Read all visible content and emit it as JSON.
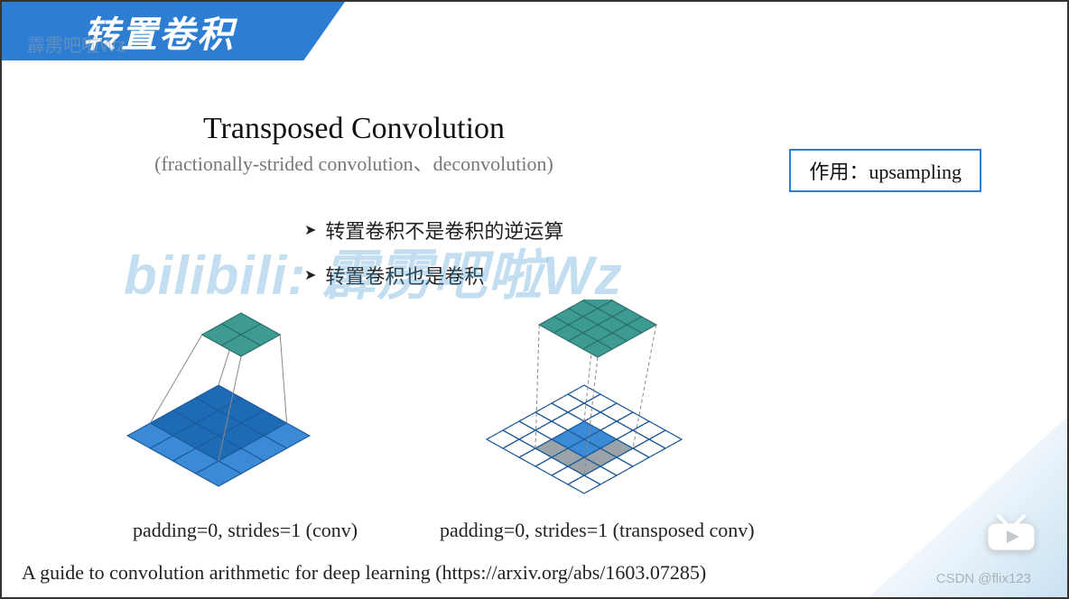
{
  "banner": {
    "title": "转置卷积",
    "bg": "#2d7dd2",
    "fg": "#ffffff"
  },
  "watermark_top": "霹雳吧啦Wz",
  "watermark_center": "bilibili: 霹雳吧啦Wz",
  "main_title": "Transposed Convolution",
  "sub_title": "(fractionally-strided convolution、deconvolution)",
  "role_box": "作用：upsampling",
  "bullets": [
    "转置卷积不是卷积的逆运算",
    "转置卷积也是卷积"
  ],
  "diagrams": {
    "left": {
      "caption": "padding=0, strides=1 (conv)",
      "top_grid": {
        "rows": 2,
        "cols": 2,
        "fill": "#3e9b93",
        "stroke": "#2a6f69"
      },
      "bottom_grid": {
        "rows": 4,
        "cols": 4,
        "fill": "#3a8ad6",
        "stroke": "#1d5a99"
      },
      "bottom_highlight": {
        "fill": "#1d6ab5",
        "cells": [
          [
            0,
            0
          ],
          [
            0,
            1
          ],
          [
            0,
            2
          ],
          [
            1,
            0
          ],
          [
            1,
            1
          ],
          [
            1,
            2
          ],
          [
            2,
            0
          ],
          [
            2,
            1
          ],
          [
            2,
            2
          ]
        ]
      }
    },
    "right": {
      "caption": "padding=0, strides=1 (transposed conv)",
      "top_grid": {
        "rows": 4,
        "cols": 4,
        "fill": "#3e9b93",
        "stroke": "#2a6f69"
      },
      "bottom_grid": {
        "rows": 6,
        "cols": 6,
        "fill": "#ffffff",
        "stroke": "#888888",
        "dashed": true
      },
      "bottom_inner": {
        "row0": 2,
        "col0": 2,
        "rows": 2,
        "cols": 2,
        "fill": "#3a8ad6",
        "stroke": "#1d5a99"
      },
      "bottom_shadow": {
        "row0": 2,
        "col0": 2,
        "rows": 3,
        "cols": 3,
        "fill": "#9aa3a8"
      }
    }
  },
  "footer": "A guide to convolution arithmetic for deep learning (https://arxiv.org/abs/1603.07285)",
  "csdn": "CSDN @flix123",
  "colors": {
    "accent": "#2d7dd2",
    "teal_fill": "#3e9b93",
    "teal_stroke": "#2a6f69",
    "blue_fill": "#3a8ad6",
    "blue_stroke": "#1d5a99",
    "gray_fill": "#9aa3a8",
    "dash_stroke": "#888888"
  }
}
